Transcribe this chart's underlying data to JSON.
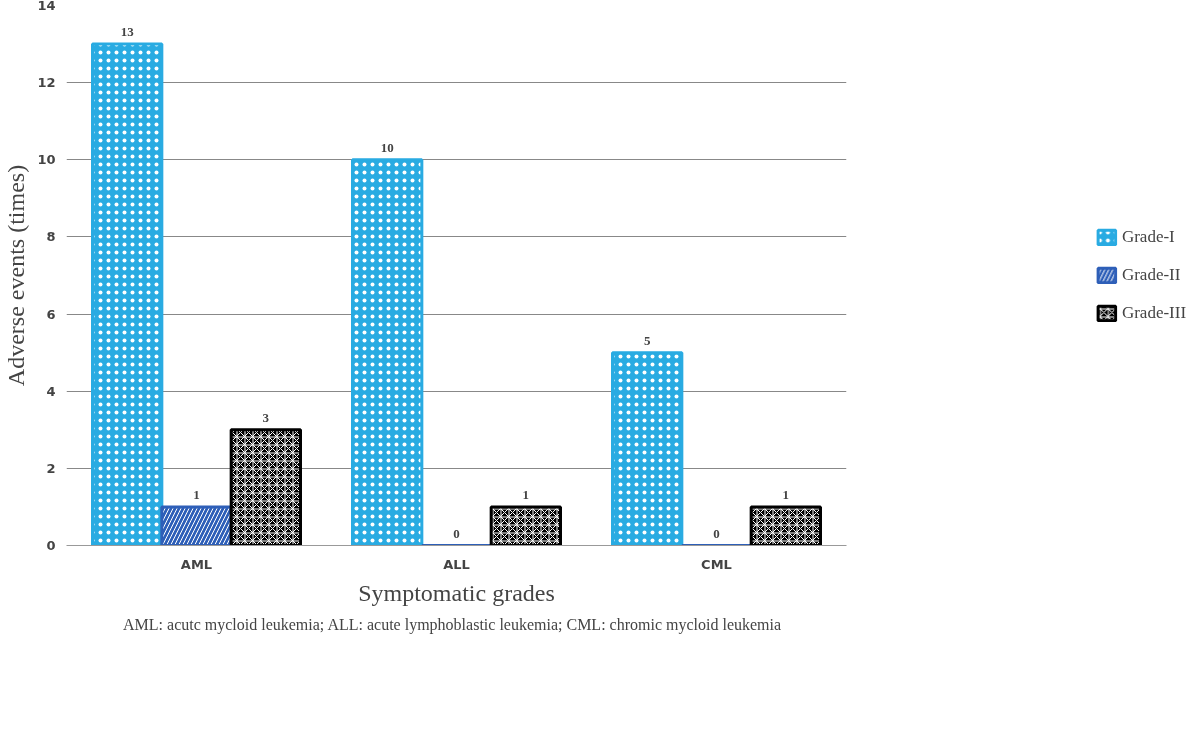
{
  "chart_data": {
    "type": "bar",
    "xlabel": "Symptomatic grades",
    "ylabel": "Adverse events (times)",
    "categories": [
      "AML",
      "ALL",
      "CML"
    ],
    "series": [
      {
        "name": "Grade-I",
        "color": "#29abe2",
        "values": [
          13,
          10,
          5
        ]
      },
      {
        "name": "Grade-II",
        "color": "#2e5fb8",
        "values": [
          1,
          0,
          0
        ]
      },
      {
        "name": "Grade-III",
        "color": "#000000",
        "values": [
          3,
          1,
          1
        ]
      }
    ],
    "ylim": [
      0,
      14
    ],
    "yticks": [
      0,
      2,
      4,
      6,
      8,
      10,
      12,
      14
    ],
    "grid": "y",
    "legend": "right",
    "data_labels": true,
    "annotations": [
      "AML: acutc mycloid leukemia;  ALL: acute lymphoblastic leukemia;  CML: chromic mycloid leukemia"
    ]
  }
}
